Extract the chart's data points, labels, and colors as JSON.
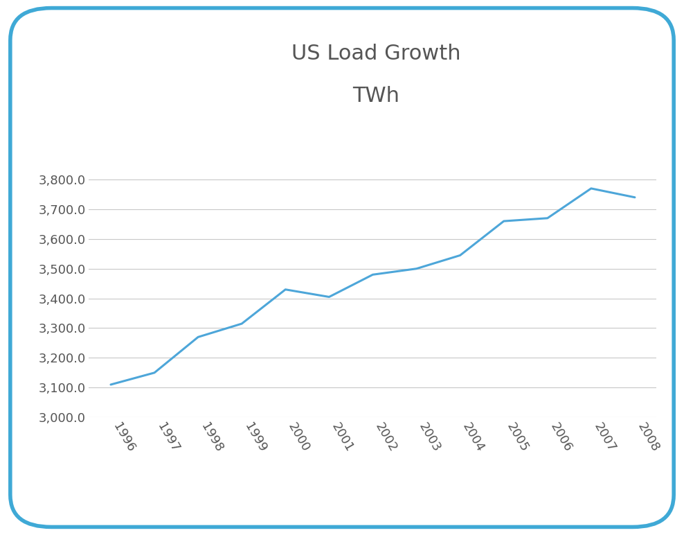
{
  "title_line1": "US Load Growth",
  "title_line2": "TWh",
  "years": [
    1996,
    1997,
    1998,
    1999,
    2000,
    2001,
    2002,
    2003,
    2004,
    2005,
    2006,
    2007,
    2008
  ],
  "values": [
    3110,
    3150,
    3270,
    3315,
    3430,
    3405,
    3480,
    3500,
    3545,
    3660,
    3670,
    3770,
    3740
  ],
  "line_color": "#4da6d9",
  "line_width": 2.2,
  "ylim": [
    3000,
    3900
  ],
  "yticks": [
    3000,
    3100,
    3200,
    3300,
    3400,
    3500,
    3600,
    3700,
    3800
  ],
  "title_color": "#555555",
  "title_fontsize": 22,
  "tick_fontsize": 13,
  "grid_color": "#c8c8c8",
  "background_color": "#ffffff",
  "border_color": "#3fa9d6",
  "border_linewidth": 4.0
}
